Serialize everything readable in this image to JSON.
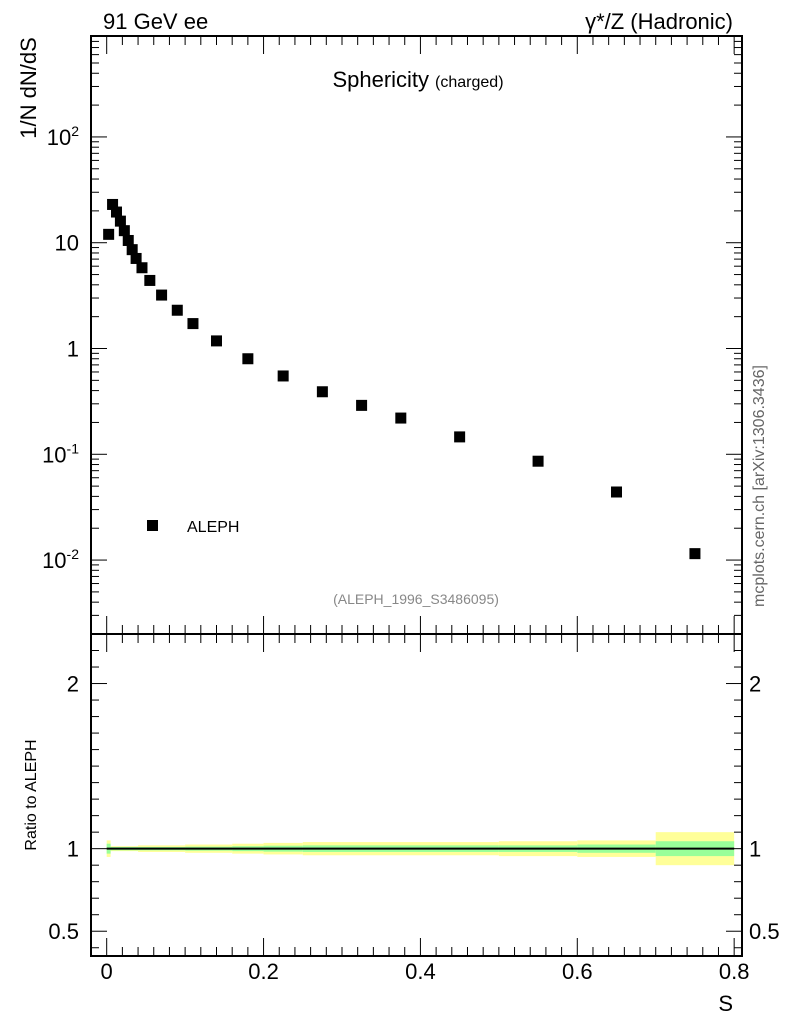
{
  "header": {
    "left": "91 GeV ee",
    "right": "γ*/Z (Hadronic)"
  },
  "watermark": "mcplots.cern.ch [arXiv:1306.3436]",
  "chart_data": [
    {
      "type": "scatter",
      "panel": "main",
      "title": "Sphericity",
      "title_suffix": "(charged)",
      "ylabel": "1/N dN/dS",
      "yscale": "log",
      "xlim": [
        -0.02,
        0.81
      ],
      "ylim": [
        0.002,
        900
      ],
      "legend": {
        "position": "bottom-left",
        "entries": [
          {
            "name": "ALEPH",
            "marker": "square",
            "color": "#000000"
          }
        ]
      },
      "reference": "(ALEPH_1996_S3486095)",
      "ytick_labels": [
        {
          "mantissa": "10",
          "exp": "-2",
          "value": 0.01
        },
        {
          "mantissa": "10",
          "exp": "-1",
          "value": 0.1
        },
        {
          "mantissa": "1",
          "exp": "",
          "value": 1
        },
        {
          "mantissa": "10",
          "exp": "",
          "value": 10
        },
        {
          "mantissa": "10",
          "exp": "2",
          "value": 100
        }
      ],
      "series": [
        {
          "name": "ALEPH",
          "x": [
            0.0025,
            0.0075,
            0.0125,
            0.0175,
            0.0225,
            0.0275,
            0.0325,
            0.0375,
            0.045,
            0.055,
            0.07,
            0.09,
            0.11,
            0.14,
            0.18,
            0.225,
            0.275,
            0.325,
            0.375,
            0.45,
            0.55,
            0.65,
            0.75
          ],
          "y": [
            12.0,
            23.0,
            19.5,
            16.0,
            13.0,
            10.5,
            8.6,
            7.1,
            5.8,
            4.4,
            3.2,
            2.3,
            1.72,
            1.18,
            0.8,
            0.55,
            0.39,
            0.29,
            0.22,
            0.146,
            0.086,
            0.044,
            0.0115
          ]
        }
      ]
    },
    {
      "type": "area",
      "panel": "ratio",
      "ylabel": "Ratio to ALEPH",
      "xlabel": "S",
      "ylim": [
        0.35,
        2.3
      ],
      "xlim": [
        -0.02,
        0.81
      ],
      "xtick_labels": [
        "0",
        "0.2",
        "0.4",
        "0.6",
        "0.8"
      ],
      "xtick_values": [
        0,
        0.2,
        0.4,
        0.6,
        0.8
      ],
      "ytick_labels": [
        "0.5",
        "1",
        "2"
      ],
      "ytick_values": [
        0.5,
        1,
        2
      ],
      "colors": {
        "inner_band": "#99ff99",
        "outer_band": "#ffff99",
        "reference_line": "#000000"
      },
      "bins": [
        {
          "lo": 0.0,
          "hi": 0.005,
          "inner": [
            0.97,
            1.03
          ],
          "outer": [
            0.95,
            1.05
          ]
        },
        {
          "lo": 0.005,
          "hi": 0.04,
          "inner": [
            0.99,
            1.01
          ],
          "outer": [
            0.985,
            1.015
          ]
        },
        {
          "lo": 0.04,
          "hi": 0.1,
          "inner": [
            0.99,
            1.01
          ],
          "outer": [
            0.98,
            1.02
          ]
        },
        {
          "lo": 0.1,
          "hi": 0.16,
          "inner": [
            0.988,
            1.012
          ],
          "outer": [
            0.975,
            1.025
          ]
        },
        {
          "lo": 0.16,
          "hi": 0.2,
          "inner": [
            0.985,
            1.015
          ],
          "outer": [
            0.97,
            1.03
          ]
        },
        {
          "lo": 0.2,
          "hi": 0.25,
          "inner": [
            0.982,
            1.018
          ],
          "outer": [
            0.965,
            1.035
          ]
        },
        {
          "lo": 0.25,
          "hi": 0.3,
          "inner": [
            0.98,
            1.02
          ],
          "outer": [
            0.96,
            1.04
          ]
        },
        {
          "lo": 0.3,
          "hi": 0.5,
          "inner": [
            0.98,
            1.02
          ],
          "outer": [
            0.96,
            1.04
          ]
        },
        {
          "lo": 0.5,
          "hi": 0.6,
          "inner": [
            0.98,
            1.02
          ],
          "outer": [
            0.955,
            1.045
          ]
        },
        {
          "lo": 0.6,
          "hi": 0.7,
          "inner": [
            0.975,
            1.025
          ],
          "outer": [
            0.95,
            1.05
          ]
        },
        {
          "lo": 0.7,
          "hi": 0.8,
          "inner": [
            0.955,
            1.045
          ],
          "outer": [
            0.9,
            1.1
          ]
        }
      ]
    }
  ]
}
